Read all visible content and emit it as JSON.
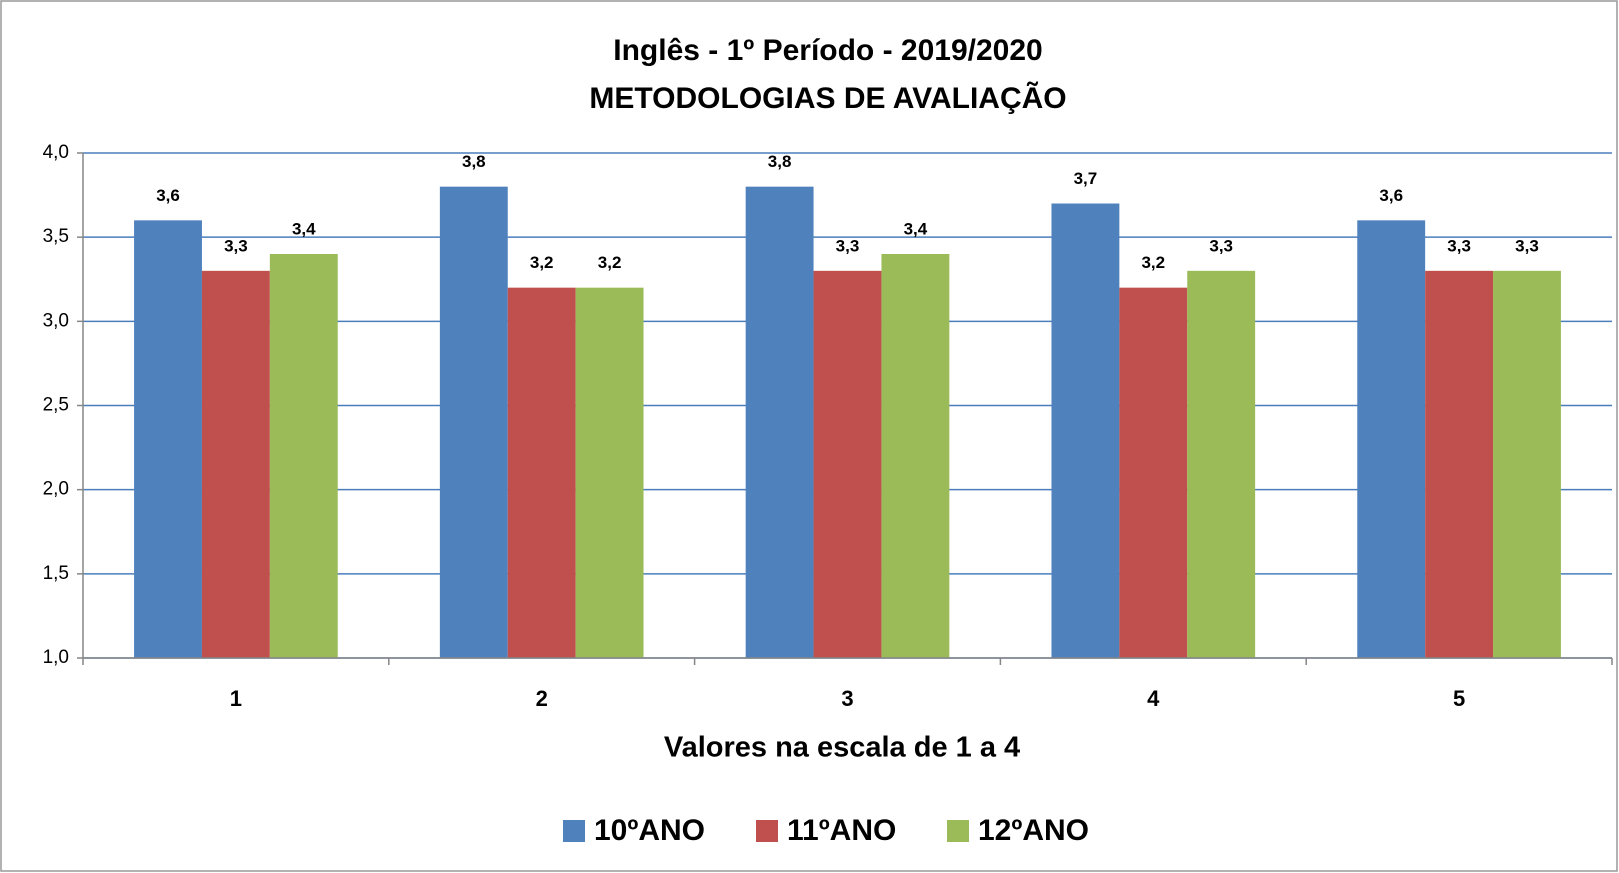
{
  "chart_data": {
    "type": "bar",
    "title": "Inglês - 1º Período - 2019/2020",
    "subtitle": "METODOLOGIAS DE AVALIAÇÃO",
    "x_label": "Valores na escala de 1 a 4",
    "categories": [
      "1",
      "2",
      "3",
      "4",
      "5"
    ],
    "series": [
      {
        "name": "10ºANO",
        "color": "#4f81bd",
        "values": [
          3.6,
          3.8,
          3.8,
          3.7,
          3.6
        ],
        "value_labels": [
          "3,6",
          "3,8",
          "3,8",
          "3,7",
          "3,6"
        ]
      },
      {
        "name": "11ºANO",
        "color": "#c0504d",
        "values": [
          3.3,
          3.2,
          3.3,
          3.2,
          3.3
        ],
        "value_labels": [
          "3,3",
          "3,2",
          "3,3",
          "3,2",
          "3,3"
        ]
      },
      {
        "name": "12ºANO",
        "color": "#9bbb59",
        "values": [
          3.4,
          3.2,
          3.4,
          3.3,
          3.3
        ],
        "value_labels": [
          "3,4",
          "3,2",
          "3,4",
          "3,3",
          "3,3"
        ]
      }
    ],
    "ylim": [
      1,
      4
    ],
    "yticks": [
      {
        "value": 1,
        "label": "1,0"
      },
      {
        "value": 1.5,
        "label": "1,5"
      },
      {
        "value": 2,
        "label": "2,0"
      },
      {
        "value": 2.5,
        "label": "2,5"
      },
      {
        "value": 3,
        "label": "3,0"
      },
      {
        "value": 3.5,
        "label": "3,5"
      },
      {
        "value": 4,
        "label": "4,0"
      }
    ],
    "grid": true,
    "legend": "bottom"
  }
}
